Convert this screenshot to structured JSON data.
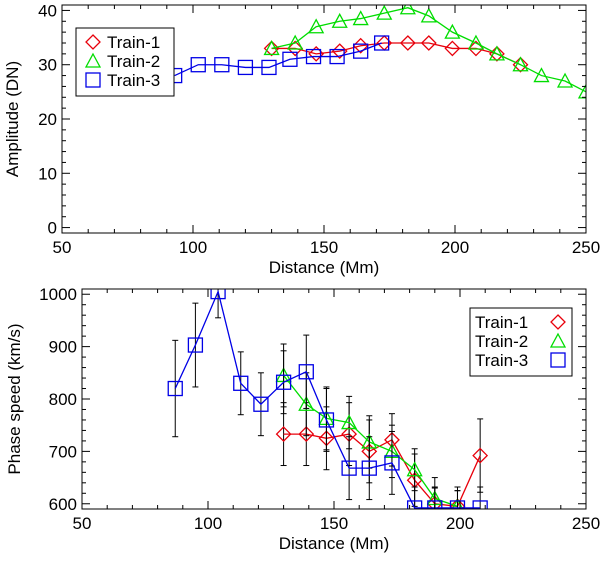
{
  "chart_data": [
    {
      "id": "amplitude",
      "type": "line",
      "xlabel": "Distance (Mm)",
      "ylabel": "Amplitude (DN)",
      "xlim": [
        50,
        250
      ],
      "ylim": [
        -1,
        41
      ],
      "xticks": [
        50,
        100,
        150,
        200,
        250
      ],
      "yticks": [
        0,
        10,
        20,
        30,
        40
      ],
      "legend_position": "top-left",
      "series": [
        {
          "name": "Train-1",
          "color": "#e8000b",
          "marker": "diamond",
          "x": [
            130,
            139,
            147,
            156,
            164,
            173,
            182,
            190,
            199,
            208,
            216,
            225
          ],
          "y": [
            33,
            33,
            32,
            32.5,
            33.5,
            34,
            34,
            34,
            33,
            33,
            32,
            30
          ]
        },
        {
          "name": "Train-2",
          "color": "#00dd00",
          "marker": "triangle",
          "x": [
            130,
            139,
            147,
            156,
            164,
            173,
            182,
            190,
            199,
            208,
            216,
            225,
            233,
            242,
            250
          ],
          "y": [
            33,
            34,
            37,
            38,
            38.5,
            39.5,
            40.5,
            39,
            36,
            34,
            32,
            30,
            28,
            27,
            25
          ]
        },
        {
          "name": "Train-3",
          "color": "#0000e6",
          "marker": "square",
          "x": [
            93,
            102,
            111,
            120,
            129,
            137,
            146,
            155,
            164,
            172
          ],
          "y": [
            28,
            30,
            30,
            29.5,
            29.5,
            31,
            31.5,
            31.5,
            32.5,
            34
          ]
        }
      ]
    },
    {
      "id": "phase-speed",
      "type": "line",
      "xlabel": "Distance (Mm)",
      "ylabel": "Phase speed (km/s)",
      "xlim": [
        50,
        250
      ],
      "ylim": [
        590,
        1010
      ],
      "xticks": [
        50,
        100,
        150,
        200,
        250
      ],
      "yticks": [
        600,
        700,
        800,
        900,
        1000
      ],
      "legend_position": "top-right",
      "series": [
        {
          "name": "Train-1",
          "color": "#e8000b",
          "marker": "diamond",
          "x": [
            130,
            139,
            147,
            156,
            164,
            173,
            182,
            190,
            199,
            208
          ],
          "y": [
            733,
            733,
            725,
            733,
            700,
            722,
            645,
            600,
            595,
            692
          ],
          "err": [
            60,
            60,
            60,
            60,
            60,
            50,
            50,
            30,
            30,
            70
          ]
        },
        {
          "name": "Train-2",
          "color": "#00dd00",
          "marker": "triangle",
          "x": [
            130,
            139,
            147,
            156,
            164,
            173,
            182,
            190,
            199
          ],
          "y": [
            845,
            790,
            763,
            755,
            718,
            700,
            665,
            610,
            595
          ],
          "err": [
            60,
            60,
            60,
            50,
            50,
            50,
            40,
            40,
            30
          ]
        },
        {
          "name": "Train-3",
          "color": "#0000e6",
          "marker": "square",
          "x": [
            87,
            95,
            104,
            113,
            121,
            130,
            139,
            147,
            156,
            164,
            173,
            182,
            190,
            199,
            208
          ],
          "y": [
            820,
            903,
            1005,
            830,
            790,
            832,
            852,
            760,
            668,
            668,
            678,
            592,
            592,
            592,
            592
          ],
          "err": [
            92,
            80,
            50,
            60,
            60,
            60,
            70,
            60,
            60,
            60,
            60,
            40,
            40,
            40,
            40
          ]
        }
      ]
    }
  ]
}
